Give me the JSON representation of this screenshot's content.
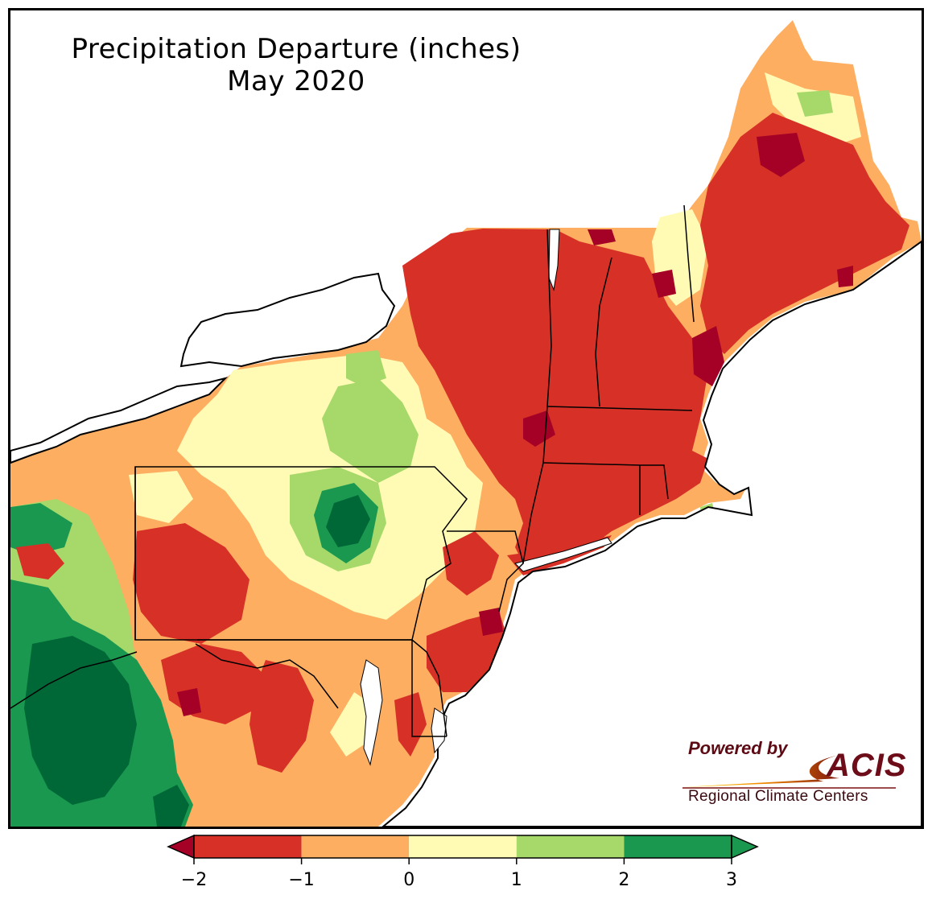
{
  "map": {
    "title_line1": "Precipitation Departure (inches)",
    "title_line2": "May 2020",
    "logo": {
      "powered_by": "Powered by",
      "brand": "ACIS",
      "subtitle": "Regional Climate Centers"
    }
  },
  "legend": {
    "ticks": [
      "−2",
      "−1",
      "0",
      "1",
      "2",
      "3"
    ],
    "bins": [
      {
        "from": -2,
        "to": -1,
        "color": "#d73027"
      },
      {
        "from": -1,
        "to": 0,
        "color": "#fdae61"
      },
      {
        "from": 0,
        "to": 1,
        "color": "#fffbb5"
      },
      {
        "from": 1,
        "to": 2,
        "color": "#a6d96a"
      },
      {
        "from": 2,
        "to": 3,
        "color": "#1a9850"
      }
    ],
    "under_color": "#a50026",
    "over_color": "#1a9850"
  },
  "colors": {
    "very_dry": "#a50026",
    "dry": "#d73027",
    "slightly_dry": "#fdae61",
    "near_normal": "#fffbb5",
    "wet": "#a6d96a",
    "very_wet": "#1a9850",
    "extremely_wet": "#006837"
  }
}
